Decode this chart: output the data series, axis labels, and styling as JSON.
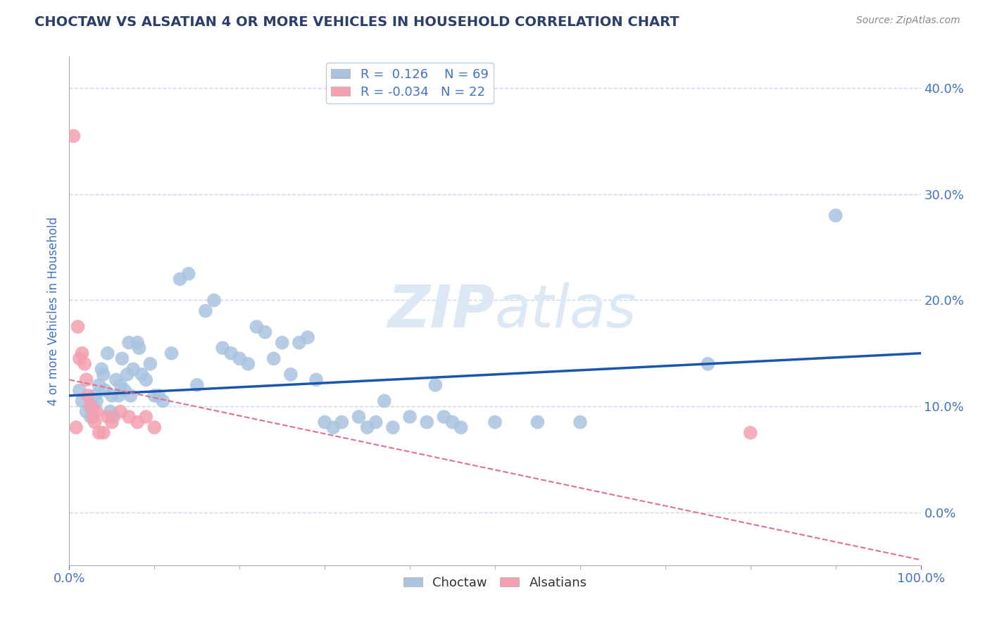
{
  "title": "CHOCTAW VS ALSATIAN 4 OR MORE VEHICLES IN HOUSEHOLD CORRELATION CHART",
  "source": "Source: ZipAtlas.com",
  "ylabel": "4 or more Vehicles in Household",
  "xlim": [
    0,
    100
  ],
  "ylim": [
    -5,
    43
  ],
  "yticks": [
    0,
    10,
    20,
    30,
    40
  ],
  "ytick_labels": [
    "0.0%",
    "10.0%",
    "20.0%",
    "30.0%",
    "40.0%"
  ],
  "xticks": [
    0,
    100
  ],
  "xtick_labels": [
    "0.0%",
    "100.0%"
  ],
  "choctaw_R": 0.126,
  "choctaw_N": 69,
  "alsatian_R": -0.034,
  "alsatian_N": 22,
  "choctaw_color": "#a8c4e0",
  "alsatian_color": "#f4a0b0",
  "choctaw_line_color": "#1a56b0",
  "alsatian_line_color": "#e07090",
  "background_color": "#ffffff",
  "grid_color": "#c8d8e8",
  "title_color": "#2c3e6b",
  "axis_label_color": "#4472c4",
  "source_color": "#888888",
  "watermark_color": "#dce8f5",
  "choctaw_x": [
    1.2,
    1.5,
    2.0,
    2.5,
    2.8,
    3.0,
    3.2,
    3.5,
    3.8,
    4.0,
    4.2,
    4.5,
    4.8,
    5.0,
    5.2,
    5.5,
    5.8,
    6.0,
    6.2,
    6.5,
    6.8,
    7.0,
    7.2,
    7.5,
    8.0,
    8.2,
    8.5,
    9.0,
    9.5,
    10.0,
    10.5,
    11.0,
    12.0,
    13.0,
    14.0,
    15.0,
    16.0,
    17.0,
    18.0,
    19.0,
    20.0,
    21.0,
    22.0,
    23.0,
    24.0,
    25.0,
    26.0,
    27.0,
    28.0,
    29.0,
    30.0,
    31.0,
    32.0,
    34.0,
    35.0,
    36.0,
    37.0,
    38.0,
    40.0,
    42.0,
    43.0,
    44.0,
    45.0,
    46.0,
    50.0,
    55.0,
    60.0,
    75.0,
    90.0
  ],
  "choctaw_y": [
    11.5,
    10.5,
    9.5,
    9.0,
    10.0,
    11.0,
    10.5,
    12.0,
    13.5,
    13.0,
    11.5,
    15.0,
    9.5,
    11.0,
    9.0,
    12.5,
    11.0,
    12.0,
    14.5,
    11.5,
    13.0,
    16.0,
    11.0,
    13.5,
    16.0,
    15.5,
    13.0,
    12.5,
    14.0,
    11.0,
    11.0,
    10.5,
    15.0,
    22.0,
    22.5,
    12.0,
    19.0,
    20.0,
    15.5,
    15.0,
    14.5,
    14.0,
    17.5,
    17.0,
    14.5,
    16.0,
    13.0,
    16.0,
    16.5,
    12.5,
    8.5,
    8.0,
    8.5,
    9.0,
    8.0,
    8.5,
    10.5,
    8.0,
    9.0,
    8.5,
    12.0,
    9.0,
    8.5,
    8.0,
    8.5,
    8.5,
    8.5,
    14.0,
    28.0
  ],
  "alsatian_x": [
    0.5,
    0.8,
    1.0,
    1.2,
    1.5,
    1.8,
    2.0,
    2.2,
    2.5,
    2.8,
    3.0,
    3.2,
    3.5,
    4.0,
    4.5,
    5.0,
    6.0,
    7.0,
    8.0,
    9.0,
    10.0,
    80.0
  ],
  "alsatian_y": [
    35.5,
    8.0,
    17.5,
    14.5,
    15.0,
    14.0,
    12.5,
    11.0,
    10.0,
    9.0,
    8.5,
    9.5,
    7.5,
    7.5,
    9.0,
    8.5,
    9.5,
    9.0,
    8.5,
    9.0,
    8.0,
    7.5
  ],
  "blue_line_x0": 0,
  "blue_line_x1": 100,
  "blue_line_y0": 11.0,
  "blue_line_y1": 15.0,
  "pink_line_x0": 0,
  "pink_line_x1": 100,
  "pink_line_y0": 12.5,
  "pink_line_y1": -4.5
}
